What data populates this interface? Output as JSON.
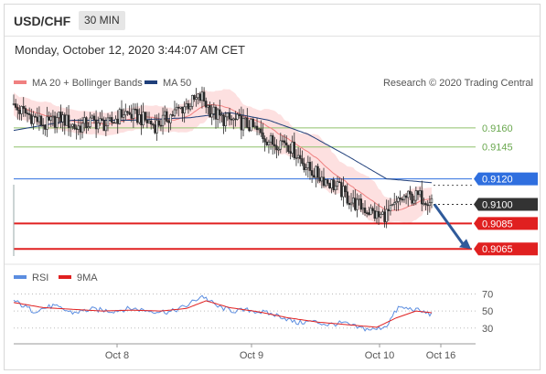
{
  "header": {
    "symbol": "USD/CHF",
    "timeframe": "30 MIN"
  },
  "timestamp": "Monday, October 12, 2020 3:44:07 AM CET",
  "legend": {
    "series1": "MA 20 + Bollinger Bands",
    "series2": "MA 50",
    "credit": "Research © 2020 Trading Central"
  },
  "rsi_legend": {
    "series1": "RSI",
    "series2": "9MA"
  },
  "colors": {
    "bollinger": "#f08080",
    "band_fill": "#fde0e0",
    "ma50": "#1f3f7a",
    "resistance": "#8fc16a",
    "pivot_blue": "#2f6fdf",
    "support_red": "#e02020",
    "current": "#333333",
    "candle": "#2a2a2a",
    "arrow": "#2f5a9a",
    "rsi": "#5b8de0"
  },
  "chart_data": [
    {
      "type": "candlestick",
      "x_ticks": [
        "Oct 8",
        "Oct 9",
        "Oct 10",
        "Oct 16"
      ],
      "price_range": [
        0.9058,
        0.919
      ],
      "levels": [
        {
          "value": 0.916,
          "label": "0.9160",
          "kind": "resistance",
          "style": "text"
        },
        {
          "value": 0.9145,
          "label": "0.9145",
          "kind": "resistance",
          "style": "text"
        },
        {
          "value": 0.912,
          "label": "0.9120",
          "kind": "pivot",
          "style": "tag"
        },
        {
          "value": 0.91,
          "label": "0.9100",
          "kind": "current",
          "style": "tag"
        },
        {
          "value": 0.9085,
          "label": "0.9085",
          "kind": "support",
          "style": "tag"
        },
        {
          "value": 0.9065,
          "label": "0.9065",
          "kind": "support",
          "style": "tag"
        }
      ],
      "close_anchors": [
        [
          0,
          0.9176
        ],
        [
          8,
          0.917
        ],
        [
          16,
          0.9162
        ],
        [
          24,
          0.9168
        ],
        [
          32,
          0.916
        ],
        [
          40,
          0.9165
        ],
        [
          48,
          0.9162
        ],
        [
          56,
          0.9172
        ],
        [
          64,
          0.9168
        ],
        [
          72,
          0.9162
        ],
        [
          80,
          0.917
        ],
        [
          88,
          0.9178
        ],
        [
          96,
          0.9184
        ],
        [
          100,
          0.9174
        ],
        [
          106,
          0.9167
        ],
        [
          114,
          0.9165
        ],
        [
          120,
          0.9162
        ],
        [
          126,
          0.9155
        ],
        [
          132,
          0.9148
        ],
        [
          138,
          0.915
        ],
        [
          144,
          0.914
        ],
        [
          150,
          0.9128
        ],
        [
          158,
          0.912
        ],
        [
          166,
          0.9112
        ],
        [
          172,
          0.9102
        ],
        [
          180,
          0.9096
        ],
        [
          186,
          0.909
        ],
        [
          192,
          0.9094
        ],
        [
          198,
          0.9105
        ],
        [
          206,
          0.9106
        ],
        [
          213,
          0.9104
        ]
      ],
      "ma50_anchors": [
        [
          0,
          0.9158
        ],
        [
          30,
          0.9166
        ],
        [
          60,
          0.9166
        ],
        [
          90,
          0.9168
        ],
        [
          110,
          0.9172
        ],
        [
          130,
          0.9166
        ],
        [
          150,
          0.9155
        ],
        [
          170,
          0.9138
        ],
        [
          190,
          0.912
        ],
        [
          213,
          0.9117
        ]
      ]
    },
    {
      "type": "line",
      "title": "RSI",
      "y_ticks": [
        70,
        50,
        30
      ],
      "y_range": [
        18,
        78
      ],
      "series": [
        {
          "name": "RSI",
          "anchors": [
            [
              0,
              62
            ],
            [
              10,
              50
            ],
            [
              20,
              56
            ],
            [
              30,
              48
            ],
            [
              40,
              52
            ],
            [
              50,
              50
            ],
            [
              60,
              53
            ],
            [
              70,
              50
            ],
            [
              80,
              49
            ],
            [
              88,
              56
            ],
            [
              96,
              68
            ],
            [
              104,
              55
            ],
            [
              112,
              50
            ],
            [
              120,
              51
            ],
            [
              128,
              48
            ],
            [
              136,
              44
            ],
            [
              144,
              36
            ],
            [
              152,
              38
            ],
            [
              160,
              34
            ],
            [
              168,
              36
            ],
            [
              176,
              30
            ],
            [
              184,
              28
            ],
            [
              190,
              33
            ],
            [
              196,
              54
            ],
            [
              204,
              52
            ],
            [
              213,
              46
            ]
          ]
        },
        {
          "name": "9MA",
          "anchors": [
            [
              0,
              60
            ],
            [
              15,
              54
            ],
            [
              30,
              52
            ],
            [
              45,
              50
            ],
            [
              60,
              51
            ],
            [
              75,
              50
            ],
            [
              88,
              53
            ],
            [
              98,
              62
            ],
            [
              110,
              54
            ],
            [
              125,
              49
            ],
            [
              140,
              42
            ],
            [
              155,
              37
            ],
            [
              170,
              34
            ],
            [
              185,
              31
            ],
            [
              195,
              42
            ],
            [
              205,
              50
            ],
            [
              213,
              48
            ]
          ]
        }
      ]
    }
  ]
}
